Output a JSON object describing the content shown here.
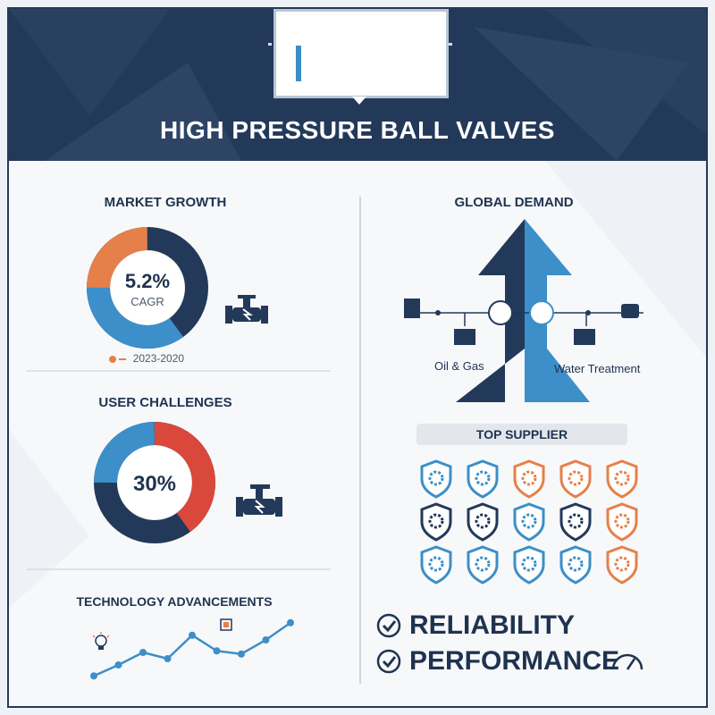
{
  "header": {
    "title": "HIGH PRESSURE BALL VALVES"
  },
  "market_growth": {
    "title": "MARKET GROWTH",
    "value": "5.2%",
    "unit": "CAGR",
    "legend": "2023-2020",
    "segments": [
      {
        "label": "orange",
        "color": "#e6804a",
        "fraction": 0.25
      },
      {
        "label": "blue",
        "color": "#3c8fc8",
        "fraction": 0.35
      },
      {
        "label": "navy",
        "color": "#23395a",
        "fraction": 0.4
      }
    ]
  },
  "user_challenges": {
    "title": "USER CHALLENGES",
    "value": "30%",
    "segments": [
      {
        "label": "red",
        "color": "#d9483b",
        "fraction": 0.4
      },
      {
        "label": "navy",
        "color": "#23395a",
        "fraction": 0.35
      },
      {
        "label": "blue",
        "color": "#3c8fc8",
        "fraction": 0.25
      }
    ]
  },
  "technology": {
    "title": "TECHNOLOGY ADVANCEMENTS",
    "line_points": [
      10,
      24,
      40,
      32,
      62,
      42,
      38,
      56,
      78
    ]
  },
  "global_demand": {
    "title": "GLOBAL DEMAND",
    "left_label": "Oil & Gas",
    "right_label": "Water Treatment"
  },
  "top_supplier": {
    "title": "TOP SUPPLIER",
    "shields": [
      {
        "color": "#3c8fc8",
        "icon": "gear-icon"
      },
      {
        "color": "#3c8fc8",
        "icon": "gear-icon"
      },
      {
        "color": "#e6804a",
        "icon": "gear-icon"
      },
      {
        "color": "#e6804a",
        "icon": "dollar-gear-icon"
      },
      {
        "color": "#e6804a",
        "icon": "gear-icon"
      },
      {
        "color": "#23395a",
        "icon": "gear-icon"
      },
      {
        "color": "#23395a",
        "icon": "target-icon"
      },
      {
        "color": "#3c8fc8",
        "icon": "gear-icon"
      },
      {
        "color": "#23395a",
        "icon": "card-icon"
      },
      {
        "color": "#e6804a",
        "icon": "burst-icon"
      },
      {
        "color": "#3c8fc8",
        "icon": "gear-icon"
      },
      {
        "color": "#3c8fc8",
        "icon": "chip-icon"
      },
      {
        "color": "#3c8fc8",
        "icon": "gear-icon"
      },
      {
        "color": "#3c8fc8",
        "icon": "gear-icon"
      },
      {
        "color": "#e6804a",
        "icon": "gear-icon"
      }
    ]
  },
  "benefits": {
    "reliability": "RELIABILITY",
    "performance": "PERFORMANCE"
  }
}
